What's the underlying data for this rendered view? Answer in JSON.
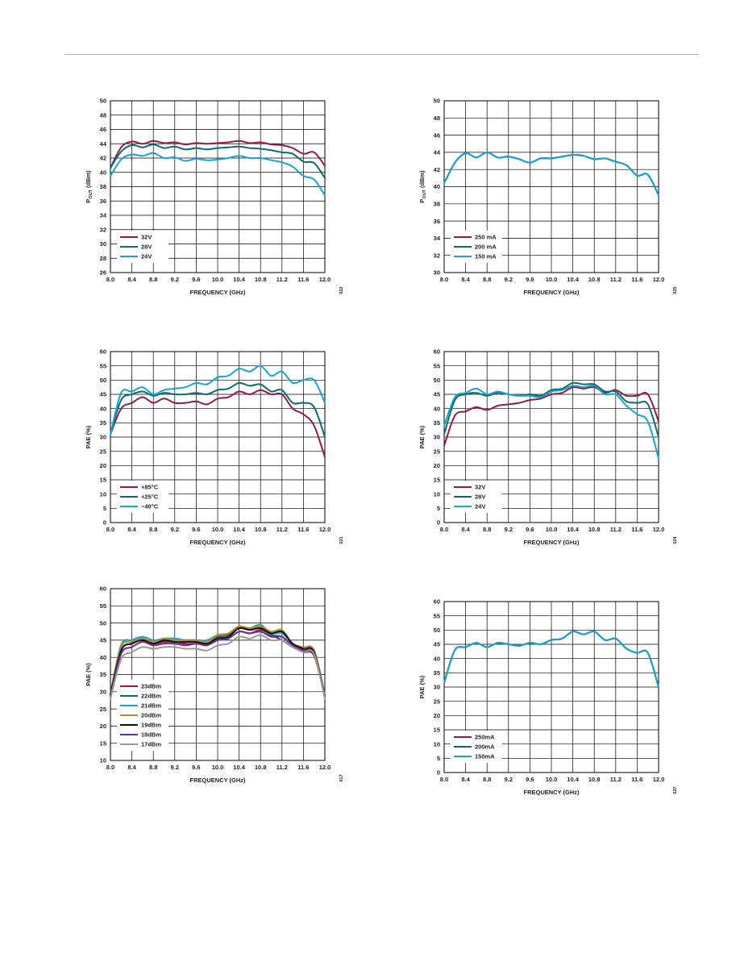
{
  "chart_data": [
    {
      "type": "line",
      "xlabel": "FREQUENCY (GHz)",
      "ylabel": "POUT (dBm)",
      "ylabel_main": "P",
      "ylabel_sub": "OUT",
      "ylabel_tail": " (dBm)",
      "xlim": [
        8.0,
        12.0
      ],
      "ylim": [
        26,
        50
      ],
      "xticks": [
        "8.0",
        "8.4",
        "8.8",
        "9.2",
        "9.6",
        "10.0",
        "10.4",
        "10.8",
        "11.2",
        "11.6",
        "12.0"
      ],
      "yticks": [
        "26",
        "28",
        "30",
        "32",
        "34",
        "36",
        "38",
        "40",
        "42",
        "44",
        "46",
        "48",
        "50"
      ],
      "grid": true,
      "legend_position": "bottom-left",
      "figure_id": "022",
      "x": [
        8.0,
        8.2,
        8.4,
        8.6,
        8.8,
        9.0,
        9.2,
        9.4,
        9.6,
        9.8,
        10.0,
        10.2,
        10.4,
        10.6,
        10.8,
        11.0,
        11.2,
        11.4,
        11.6,
        11.8,
        12.0
      ],
      "series": [
        {
          "name": "32V",
          "color": "#8e1c4a",
          "values": [
            40.6,
            43.5,
            44.3,
            44.0,
            44.4,
            44.1,
            44.2,
            43.9,
            44.1,
            44.0,
            44.1,
            44.2,
            44.4,
            44.1,
            44.2,
            43.9,
            43.8,
            43.4,
            42.6,
            42.8,
            40.9
          ]
        },
        {
          "name": "28V",
          "color": "#0e6b6b",
          "values": [
            40.6,
            42.9,
            43.8,
            43.5,
            43.9,
            43.4,
            43.6,
            43.2,
            43.4,
            43.2,
            43.4,
            43.5,
            43.6,
            43.4,
            43.3,
            43.1,
            42.8,
            42.6,
            41.5,
            41.3,
            39.2
          ]
        },
        {
          "name": "24V",
          "color": "#1aa3d0",
          "values": [
            39.5,
            41.8,
            42.5,
            42.3,
            42.7,
            42.0,
            42.1,
            41.6,
            41.9,
            41.7,
            41.8,
            42.0,
            42.3,
            42.0,
            42.0,
            41.7,
            41.4,
            40.8,
            39.5,
            39.0,
            36.8
          ]
        }
      ]
    },
    {
      "type": "line",
      "xlabel": "FREQUENCY (GHz)",
      "ylabel": "POUT (dBm)",
      "ylabel_main": "P",
      "ylabel_sub": "OUT",
      "ylabel_tail": " (dBm)",
      "xlim": [
        8.0,
        12.0
      ],
      "ylim": [
        30,
        50
      ],
      "xticks": [
        "8.0",
        "8.4",
        "8.8",
        "9.2",
        "9.6",
        "10.0",
        "10.4",
        "10.8",
        "11.2",
        "11.6",
        "12.0"
      ],
      "yticks": [
        "30",
        "32",
        "34",
        "36",
        "38",
        "40",
        "42",
        "44",
        "46",
        "48",
        "50"
      ],
      "grid": true,
      "legend_position": "bottom-left",
      "figure_id": "025",
      "x": [
        8.0,
        8.2,
        8.4,
        8.6,
        8.8,
        9.0,
        9.2,
        9.4,
        9.6,
        9.8,
        10.0,
        10.2,
        10.4,
        10.6,
        10.8,
        11.0,
        11.2,
        11.4,
        11.6,
        11.8,
        12.0
      ],
      "series": [
        {
          "name": "250 mA",
          "color": "#8e1c4a",
          "values": [
            40.4,
            42.8,
            43.9,
            43.4,
            44.0,
            43.4,
            43.5,
            43.2,
            42.8,
            43.3,
            43.3,
            43.5,
            43.7,
            43.6,
            43.2,
            43.3,
            42.9,
            42.5,
            41.3,
            41.4,
            39.0
          ]
        },
        {
          "name": "200 mA",
          "color": "#0e6b6b",
          "values": [
            40.4,
            42.8,
            43.9,
            43.4,
            44.0,
            43.4,
            43.5,
            43.2,
            42.8,
            43.3,
            43.3,
            43.5,
            43.7,
            43.6,
            43.2,
            43.3,
            42.9,
            42.5,
            41.3,
            41.4,
            39.0
          ]
        },
        {
          "name": "150 mA",
          "color": "#1aa3d0",
          "values": [
            40.4,
            42.8,
            43.9,
            43.4,
            44.0,
            43.4,
            43.5,
            43.2,
            42.8,
            43.3,
            43.3,
            43.5,
            43.7,
            43.6,
            43.2,
            43.3,
            42.9,
            42.5,
            41.3,
            41.4,
            39.0
          ]
        }
      ]
    },
    {
      "type": "line",
      "xlabel": "FREQUENCY (GHz)",
      "ylabel": "PAE (%)",
      "ylabel_main": "PAE (%)",
      "ylabel_sub": "",
      "ylabel_tail": "",
      "xlim": [
        8.0,
        12.0
      ],
      "ylim": [
        0,
        60
      ],
      "xticks": [
        "8.0",
        "8.4",
        "8.8",
        "9.2",
        "9.6",
        "10.0",
        "10.4",
        "10.8",
        "11.2",
        "11.6",
        "12.0"
      ],
      "yticks": [
        "0",
        "5",
        "10",
        "15",
        "20",
        "25",
        "30",
        "35",
        "40",
        "45",
        "50",
        "55",
        "60"
      ],
      "grid": true,
      "legend_position": "bottom-left",
      "figure_id": "021",
      "x": [
        8.0,
        8.2,
        8.4,
        8.6,
        8.8,
        9.0,
        9.2,
        9.4,
        9.6,
        9.8,
        10.0,
        10.2,
        10.4,
        10.6,
        10.8,
        11.0,
        11.2,
        11.4,
        11.6,
        11.8,
        12.0
      ],
      "series": [
        {
          "name": "+85°C",
          "color": "#8e1c4a",
          "values": [
            31,
            40,
            42,
            44,
            42,
            43.5,
            42,
            42,
            42.5,
            41.5,
            43.5,
            44,
            46,
            45,
            46.5,
            45,
            45,
            40,
            38,
            34,
            23
          ]
        },
        {
          "name": "+25°C",
          "color": "#0e6b6b",
          "values": [
            31,
            43,
            45,
            46,
            44.5,
            45.5,
            45,
            45,
            45.5,
            45,
            46.5,
            47,
            49,
            48,
            48.5,
            46,
            46.5,
            42,
            42,
            40.5,
            30
          ]
        },
        {
          "name": "−40°C",
          "color": "#1aa3d0",
          "values": [
            31,
            45.5,
            46,
            47.5,
            45,
            46.5,
            47,
            47.5,
            49,
            48.5,
            51,
            51.5,
            54,
            53,
            55,
            51.5,
            53,
            49,
            50,
            50,
            42
          ]
        }
      ]
    },
    {
      "type": "line",
      "xlabel": "FREQUENCY (GHz)",
      "ylabel": "PAE (%)",
      "ylabel_main": "PAE (%)",
      "ylabel_sub": "",
      "ylabel_tail": "",
      "xlim": [
        8.0,
        12.0
      ],
      "ylim": [
        0,
        60
      ],
      "xticks": [
        "8.0",
        "8.4",
        "8.8",
        "9.2",
        "9.6",
        "10.0",
        "10.4",
        "10.8",
        "11.2",
        "11.6",
        "12.0"
      ],
      "yticks": [
        "0",
        "5",
        "10",
        "15",
        "20",
        "25",
        "30",
        "35",
        "40",
        "45",
        "50",
        "55",
        "60"
      ],
      "grid": true,
      "legend_position": "bottom-left",
      "figure_id": "024",
      "x": [
        8.0,
        8.2,
        8.4,
        8.6,
        8.8,
        9.0,
        9.2,
        9.4,
        9.6,
        9.8,
        10.0,
        10.2,
        10.4,
        10.6,
        10.8,
        11.0,
        11.2,
        11.4,
        11.6,
        11.8,
        12.0
      ],
      "series": [
        {
          "name": "32V",
          "color": "#8e1c4a",
          "values": [
            27,
            37.5,
            39,
            40.5,
            39.5,
            41,
            41.5,
            42,
            43,
            43.5,
            45,
            45.5,
            47.5,
            47,
            47.5,
            45.5,
            46.5,
            44.5,
            44.5,
            45,
            35.5
          ]
        },
        {
          "name": "28V",
          "color": "#0e6b6b",
          "values": [
            31,
            43,
            45,
            45.5,
            44.5,
            45.5,
            45,
            44.5,
            45,
            44.5,
            46.5,
            47,
            49,
            48.5,
            48.5,
            46,
            46,
            42.5,
            42,
            41.5,
            30
          ]
        },
        {
          "name": "24V",
          "color": "#1aa3d0",
          "values": [
            34,
            44,
            45.5,
            47,
            45,
            46,
            45,
            44.5,
            44.5,
            44,
            46,
            46.5,
            48,
            47.5,
            48,
            45,
            45,
            41,
            38,
            35.5,
            22.5
          ]
        }
      ]
    },
    {
      "type": "line",
      "xlabel": "FREQUENCY (GHz)",
      "ylabel": "PAE (%)",
      "ylabel_main": "PAE (%)",
      "ylabel_sub": "",
      "ylabel_tail": "",
      "xlim": [
        8.0,
        12.0
      ],
      "ylim": [
        10,
        60
      ],
      "xticks": [
        "8.0",
        "8.4",
        "8.8",
        "9.2",
        "9.6",
        "10.0",
        "10.4",
        "10.8",
        "11.2",
        "11.6",
        "12.0"
      ],
      "yticks": [
        "10",
        "15",
        "20",
        "25",
        "30",
        "35",
        "40",
        "45",
        "50",
        "55",
        "60"
      ],
      "grid": true,
      "legend_position": "bottom-left",
      "figure_id": "017",
      "x": [
        8.0,
        8.2,
        8.4,
        8.6,
        8.8,
        9.0,
        9.2,
        9.4,
        9.6,
        9.8,
        10.0,
        10.2,
        10.4,
        10.6,
        10.8,
        11.0,
        11.2,
        11.4,
        11.6,
        11.8,
        12.0
      ],
      "series": [
        {
          "name": "23dBm",
          "color": "#8e1c4a",
          "values": [
            29,
            42,
            44,
            45,
            44,
            44.5,
            44.5,
            44,
            44,
            44,
            45,
            45.5,
            47.5,
            47,
            48,
            46.5,
            45,
            43,
            41.5,
            40.5,
            28.5
          ]
        },
        {
          "name": "22dBm",
          "color": "#0e6b6b",
          "values": [
            29.5,
            43.5,
            45,
            45.5,
            44.5,
            45.5,
            45,
            45,
            45,
            44.5,
            46,
            46.5,
            48.5,
            48,
            48.5,
            46.5,
            46,
            43.5,
            42.5,
            41.5,
            29
          ]
        },
        {
          "name": "21dBm",
          "color": "#1aa3d0",
          "values": [
            29.5,
            43.5,
            45,
            46,
            45,
            45.5,
            45.5,
            45,
            45,
            45,
            46.5,
            47,
            49,
            48.5,
            49.5,
            47,
            47,
            44,
            42.5,
            42,
            29
          ]
        },
        {
          "name": "20dBm",
          "color": "#c08a1e",
          "values": [
            29.5,
            43,
            44.5,
            45.5,
            44.5,
            45.5,
            45,
            45,
            45,
            44.5,
            46.5,
            47,
            49,
            48.5,
            49,
            47.5,
            48,
            44,
            43,
            42,
            29
          ]
        },
        {
          "name": "19dBm",
          "color": "#111111",
          "values": [
            29,
            42,
            44,
            45,
            44,
            45,
            44.5,
            44.5,
            44.5,
            44,
            45.5,
            46,
            48.5,
            48,
            48.5,
            47,
            47.5,
            44,
            42.5,
            41.5,
            28.5
          ]
        },
        {
          "name": "18dBm",
          "color": "#6b2d8e",
          "values": [
            28.5,
            41,
            43,
            44.5,
            43.5,
            44,
            44,
            43.5,
            44,
            43.5,
            45,
            45.5,
            47.5,
            47,
            47.5,
            46,
            46,
            43.5,
            42,
            41,
            28.5
          ]
        },
        {
          "name": "17dBm",
          "color": "#999999",
          "values": [
            28,
            39.5,
            41.5,
            43,
            42.5,
            43,
            43,
            42.5,
            42.5,
            42,
            43.5,
            44,
            46,
            45.5,
            46.5,
            45,
            45,
            43,
            41.5,
            41,
            28
          ]
        }
      ]
    },
    {
      "type": "line",
      "xlabel": "FREQUENCY (GHz)",
      "ylabel": "PAE (%)",
      "ylabel_main": "PAE (%)",
      "ylabel_sub": "",
      "ylabel_tail": "",
      "xlim": [
        8.0,
        12.0
      ],
      "ylim": [
        0,
        60
      ],
      "xticks": [
        "8.0",
        "8.4",
        "8.8",
        "9.2",
        "9.6",
        "10.0",
        "10.4",
        "10.8",
        "11.2",
        "11.6",
        "12.0"
      ],
      "yticks": [
        "0",
        "5",
        "10",
        "15",
        "20",
        "25",
        "30",
        "35",
        "40",
        "45",
        "50",
        "55",
        "60"
      ],
      "grid": true,
      "legend_position": "bottom-left",
      "figure_id": "027",
      "x": [
        8.0,
        8.2,
        8.4,
        8.6,
        8.8,
        9.0,
        9.2,
        9.4,
        9.6,
        9.8,
        10.0,
        10.2,
        10.4,
        10.6,
        10.8,
        11.0,
        11.2,
        11.4,
        11.6,
        11.8,
        12.0
      ],
      "series": [
        {
          "name": "250mA",
          "color": "#8e1c4a",
          "values": [
            31.5,
            43,
            44,
            45.5,
            44,
            45.5,
            45,
            44.5,
            45.5,
            45,
            46.5,
            47,
            49.5,
            48.5,
            49.5,
            46.5,
            47,
            43.5,
            42,
            42,
            30
          ]
        },
        {
          "name": "200mA",
          "color": "#0e6b6b",
          "values": [
            31.5,
            43,
            44,
            45.5,
            44,
            45.5,
            45,
            44.5,
            45.5,
            45,
            46.5,
            47,
            49.5,
            48.5,
            49.5,
            46.5,
            47,
            43.5,
            42,
            42,
            30
          ]
        },
        {
          "name": "150mA",
          "color": "#1aa3d0",
          "values": [
            31.5,
            43,
            44,
            45.5,
            44,
            45.5,
            45,
            44.5,
            45.5,
            45,
            46.5,
            47,
            49.5,
            48.5,
            49.5,
            46.5,
            47,
            43.5,
            42,
            42,
            30
          ]
        }
      ]
    }
  ]
}
